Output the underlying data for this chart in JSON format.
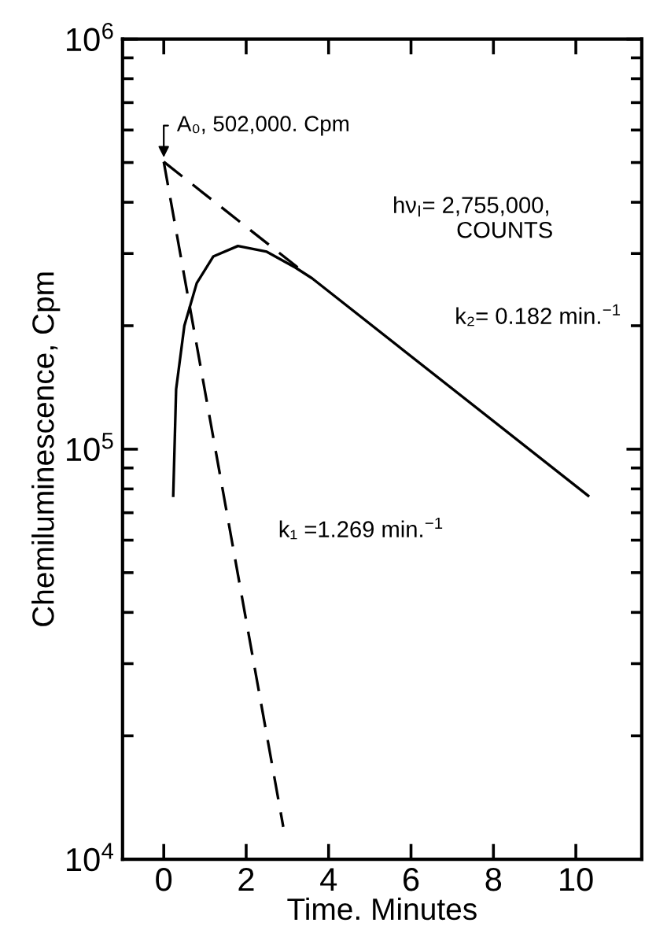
{
  "chart_data": {
    "type": "line",
    "xlabel": "Time. Minutes",
    "ylabel": "Chemiluminescence, Cpm",
    "series": [
      {
        "color": "#000000",
        "line_style": "solid",
        "x": [
          0.23,
          0.3,
          0.5,
          0.8,
          1.2,
          1.8,
          2.5,
          3.2,
          3.6,
          10.3
        ],
        "values": [
          77000,
          140000,
          200000,
          254000,
          295000,
          313000,
          303000,
          277000,
          261000,
          77000
        ]
      },
      {
        "color": "#000000",
        "line_style": "dashed",
        "x": [
          0,
          3.4
        ],
        "values": [
          502000,
          270000
        ]
      },
      {
        "color": "#000000",
        "line_style": "dashed",
        "x": [
          0,
          2.9
        ],
        "values": [
          502000,
          12000
        ]
      }
    ],
    "annotations": [
      {
        "text": "A₀, 502,000. Cpm",
        "x": 0,
        "y": 502000
      },
      "hν$_{I}$= 2,755,000,\n          COUNTS",
      "k₂= 0.182 min.$^{−1}$",
      "k₁ =1.269 min.$^{−1}$"
    ],
    "log": "y",
    "xlim": [
      -1,
      11.6
    ],
    "ylim": [
      10000,
      1000000
    ],
    "xticks": [
      0,
      2,
      4,
      6,
      8,
      10
    ],
    "yticks": [
      {
        "value": 10000,
        "label": "10$^{4}$"
      },
      {
        "value": 100000,
        "label": "10$^{5}$"
      },
      {
        "value": 1000000,
        "label": "10$^{6}$"
      }
    ],
    "grid": false,
    "marker": "none"
  }
}
